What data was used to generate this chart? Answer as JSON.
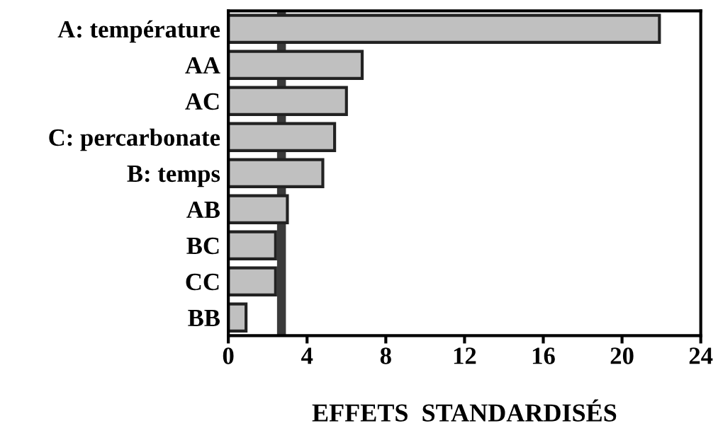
{
  "chart_data": {
    "type": "bar",
    "orientation": "horizontal",
    "categories": [
      "A: température",
      "AA",
      "AC",
      "C: percarbonate",
      "B: temps",
      "AB",
      "BC",
      "CC",
      "BB"
    ],
    "values": [
      21.9,
      6.8,
      6.0,
      5.4,
      4.8,
      3.0,
      2.4,
      2.4,
      0.9
    ],
    "color": "#c0c0c0",
    "xlabel": "EFFETS  STANDARDISÉS",
    "xlim": [
      0,
      24
    ],
    "xticks": [
      0,
      4,
      8,
      12,
      16,
      20,
      24
    ],
    "ref_lines": [
      {
        "axis": "x",
        "value": 2.7,
        "color": "#3a3a3a"
      }
    ],
    "grid": false
  }
}
